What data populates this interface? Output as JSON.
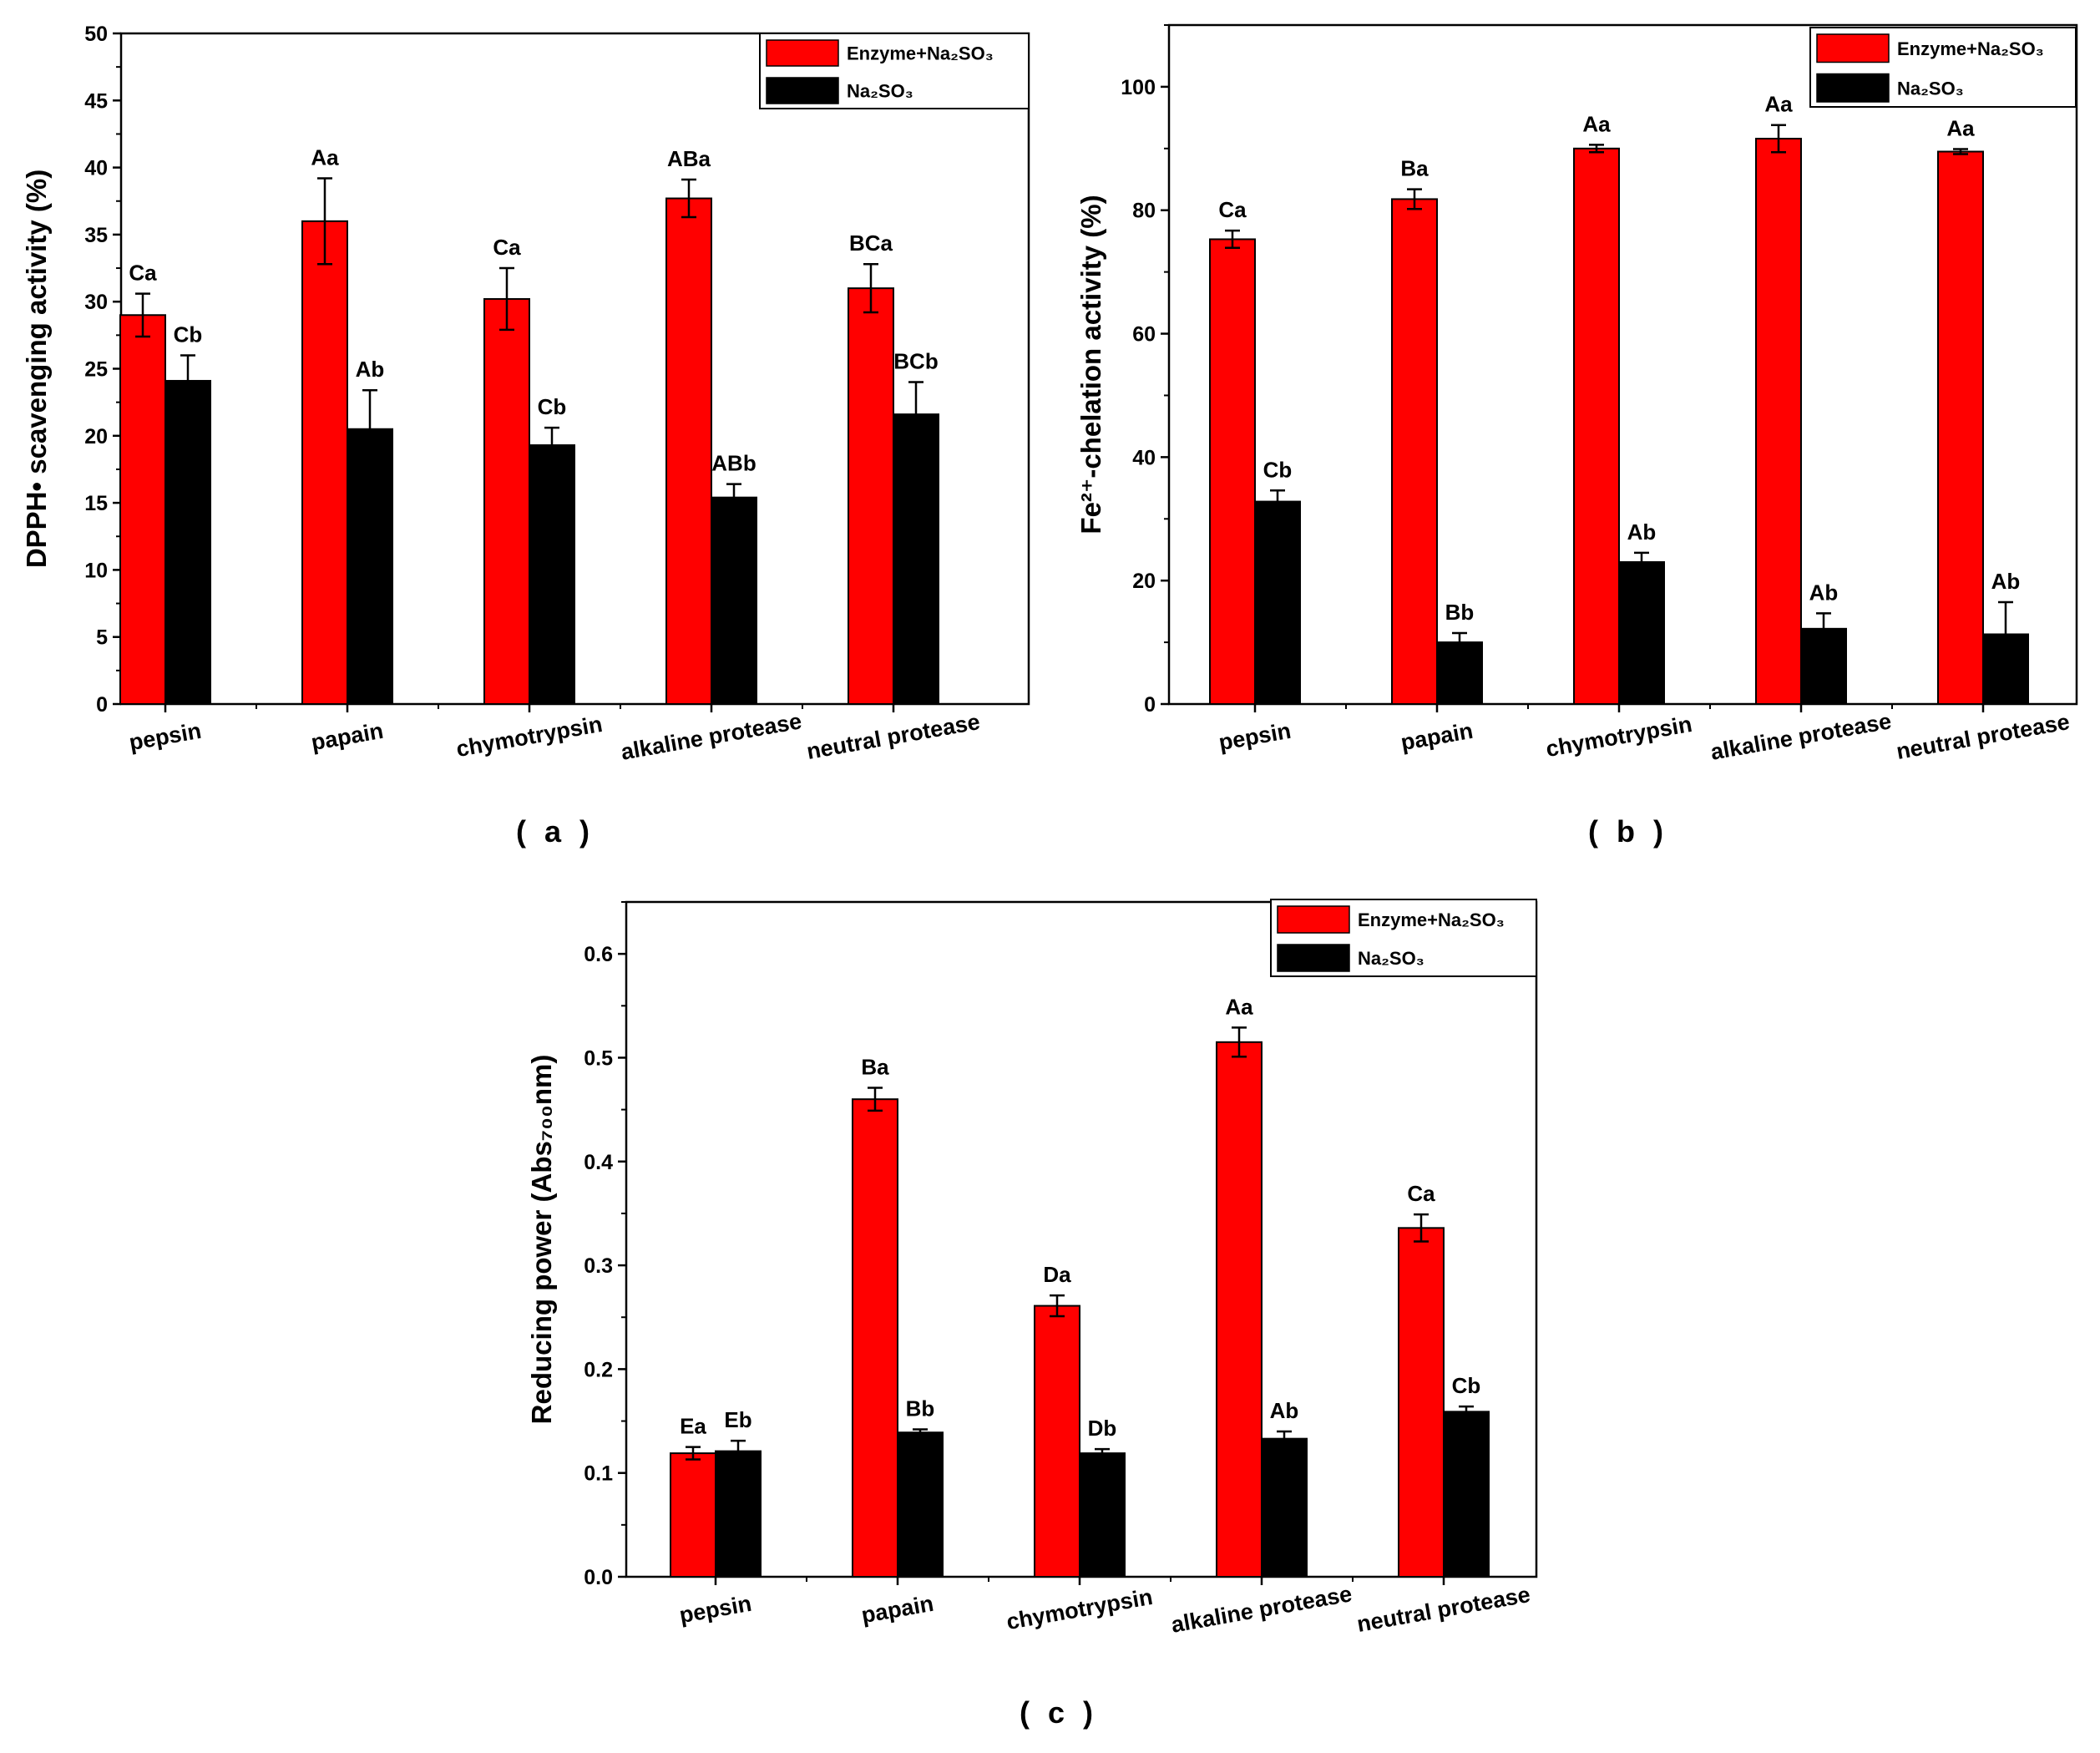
{
  "colors": {
    "enzyme": "#ff0000",
    "sulfite": "#000000"
  },
  "chart_data": [
    {
      "type": "bar",
      "panel_label": "( a )",
      "ylabel": "DPPH• scavenging activity (%)",
      "ylim": [
        0,
        50
      ],
      "ytick_step": 5,
      "categories": [
        "pepsin",
        "papain",
        "chymotrypsin",
        "alkaline protease",
        "neutral protease"
      ],
      "legend": {
        "placement": "top-right",
        "entries": [
          "Enzyme+Na₂SO₃",
          "Na₂SO₃"
        ]
      },
      "series": [
        {
          "name": "Enzyme+Na₂SO₃",
          "values": [
            29.0,
            36.0,
            30.2,
            37.7,
            31.0
          ],
          "errors": [
            1.6,
            3.2,
            2.3,
            1.4,
            1.8
          ],
          "labels": [
            "Ca",
            "Aa",
            "Ca",
            "ABa",
            "BCa"
          ]
        },
        {
          "name": "Na₂SO₃",
          "values": [
            24.1,
            20.5,
            19.3,
            15.4,
            21.6
          ],
          "errors": [
            1.9,
            2.9,
            1.3,
            1.0,
            2.4
          ],
          "labels": [
            "Cb",
            "Ab",
            "Cb",
            "ABb",
            "BCb"
          ]
        }
      ]
    },
    {
      "type": "bar",
      "panel_label": "( b )",
      "ylabel": "Fe²⁺-chelation activity (%)",
      "ylim": [
        0,
        110
      ],
      "ytick_step": 20,
      "categories": [
        "pepsin",
        "papain",
        "chymotrypsin",
        "alkaline protease",
        "neutral protease"
      ],
      "legend": {
        "placement": "top-right",
        "entries": [
          "Enzyme+Na₂SO₃",
          "Na₂SO₃"
        ]
      },
      "series": [
        {
          "name": "Enzyme+Na₂SO₃",
          "values": [
            75.3,
            81.8,
            90.0,
            91.6,
            89.5
          ],
          "errors": [
            1.4,
            1.6,
            0.6,
            2.2,
            0.4
          ],
          "labels": [
            "Ca",
            "Ba",
            "Aa",
            "Aa",
            "Aa"
          ]
        },
        {
          "name": "Na₂SO₃",
          "values": [
            32.8,
            10.0,
            23.0,
            12.2,
            11.3
          ],
          "errors": [
            1.8,
            1.5,
            1.5,
            2.5,
            5.2
          ],
          "labels": [
            "Cb",
            "Bb",
            "Ab",
            "Ab",
            "Ab"
          ]
        }
      ]
    },
    {
      "type": "bar",
      "panel_label": "( c )",
      "ylabel": "Reducing power (Abs₇₀₀nm)",
      "ylim": [
        0,
        0.65
      ],
      "ytick_step": 0.1,
      "categories": [
        "pepsin",
        "papain",
        "chymotrypsin",
        "alkaline protease",
        "neutral protease"
      ],
      "legend": {
        "placement": "top-right",
        "entries": [
          "Enzyme+Na₂SO₃",
          "Na₂SO₃"
        ]
      },
      "series": [
        {
          "name": "Enzyme+Na₂SO₃",
          "values": [
            0.119,
            0.46,
            0.261,
            0.515,
            0.336
          ],
          "errors": [
            0.006,
            0.011,
            0.01,
            0.014,
            0.013
          ],
          "labels": [
            "Ea",
            "Ba",
            "Da",
            "Aa",
            "Ca"
          ]
        },
        {
          "name": "Na₂SO₃",
          "values": [
            0.121,
            0.139,
            0.119,
            0.133,
            0.159
          ],
          "errors": [
            0.01,
            0.003,
            0.004,
            0.007,
            0.005
          ],
          "labels": [
            "Eb",
            "Bb",
            "Db",
            "Ab",
            "Cb"
          ]
        }
      ]
    }
  ]
}
